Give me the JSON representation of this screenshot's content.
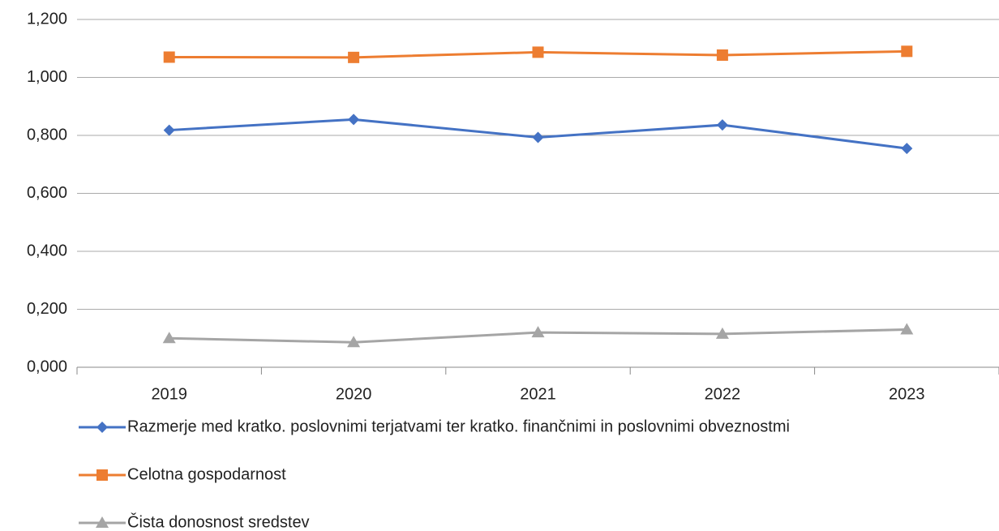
{
  "chart_data": {
    "type": "line",
    "categories": [
      "2019",
      "2020",
      "2021",
      "2022",
      "2023"
    ],
    "series": [
      {
        "name": "Razmerje med kratko. poslovnimi terjatvami ter kratko. finančnimi in poslovnimi obveznostmi",
        "color": "#4472c4",
        "marker": "diamond",
        "values": [
          0.818,
          0.855,
          0.793,
          0.836,
          0.755
        ]
      },
      {
        "name": "Celotna gospodarnost",
        "color": "#ed7d31",
        "marker": "square",
        "values": [
          1.07,
          1.069,
          1.087,
          1.077,
          1.09
        ]
      },
      {
        "name": "Čista donosnost sredstev",
        "color": "#a5a5a5",
        "marker": "triangle",
        "values": [
          0.1,
          0.086,
          0.12,
          0.115,
          0.13
        ]
      }
    ],
    "ylim": [
      0,
      1.2
    ],
    "yticks": [
      {
        "value": 0,
        "label": "0,000"
      },
      {
        "value": 0.2,
        "label": "0,200"
      },
      {
        "value": 0.4,
        "label": "0,400"
      },
      {
        "value": 0.6,
        "label": "0,600"
      },
      {
        "value": 0.8,
        "label": "0,800"
      },
      {
        "value": 1.0,
        "label": "1,000"
      },
      {
        "value": 1.2,
        "label": "1,200"
      }
    ],
    "grid": true,
    "legend": "bottom"
  }
}
